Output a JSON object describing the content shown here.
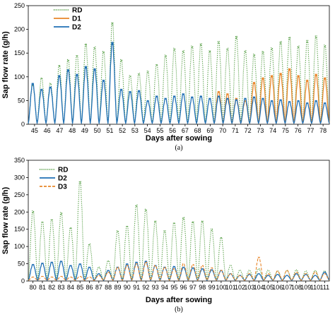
{
  "chart_data": [
    {
      "type": "line",
      "panel_label": "(a)",
      "xlabel": "Days after sowing",
      "ylabel": "Sap flow rate (g/h)",
      "xlim": [
        45,
        79
      ],
      "ylim": [
        0,
        250
      ],
      "yticks": [
        0,
        50,
        100,
        150,
        200,
        250
      ],
      "xticks": [
        45,
        46,
        47,
        48,
        49,
        50,
        51,
        52,
        53,
        54,
        55,
        56,
        67,
        68,
        69,
        70,
        71,
        72,
        73,
        74,
        75,
        76,
        77,
        78
      ],
      "grid": false,
      "legend_position": "top-left",
      "series": [
        {
          "name": "RD",
          "color": "#4e9a3c",
          "dash": "dotted",
          "daily_peaks": [
            [
              45.5,
              85
            ],
            [
              46.5,
              100
            ],
            [
              47.5,
              88
            ],
            [
              48.5,
              128
            ],
            [
              49.5,
              140
            ],
            [
              50.5,
              150
            ],
            [
              51.5,
              175
            ],
            [
              52.5,
              168
            ],
            [
              53.5,
              158
            ],
            [
              54.5,
              222
            ],
            [
              55.5,
              140
            ],
            [
              56.5,
              105
            ],
            [
              57.5,
              110
            ],
            [
              58.5,
              115
            ],
            [
              59.5,
              130
            ],
            [
              60.5,
              150
            ],
            [
              61.5,
              165
            ],
            [
              62.5,
              160
            ],
            [
              63.5,
              170
            ],
            [
              64.5,
              175
            ],
            [
              65.5,
              160
            ],
            [
              66.5,
              180
            ],
            [
              67.5,
              165
            ],
            [
              68.5,
              192
            ],
            [
              69.5,
              160
            ],
            [
              70.5,
              152
            ],
            [
              71.5,
              158
            ],
            [
              72.5,
              166
            ],
            [
              73.5,
              180
            ],
            [
              74.5,
              190
            ],
            [
              75.5,
              170
            ],
            [
              76.5,
              182
            ],
            [
              77.5,
              192
            ],
            [
              78.5,
              172
            ]
          ]
        },
        {
          "name": "D1",
          "color": "#e8862a",
          "dash": "solid",
          "daily_peaks": [
            [
              66.5,
              70
            ],
            [
              67.5,
              65
            ],
            [
              68.5,
              55
            ],
            [
              69.5,
              50
            ],
            [
              70.5,
              90
            ],
            [
              71.5,
              100
            ],
            [
              72.5,
              105
            ],
            [
              73.5,
              110
            ],
            [
              74.5,
              120
            ],
            [
              75.5,
              105
            ],
            [
              76.5,
              95
            ],
            [
              77.5,
              108
            ],
            [
              78.5,
              100
            ]
          ]
        },
        {
          "name": "D2",
          "color": "#1f6fb4",
          "dash": "solid",
          "daily_peaks": [
            [
              45.5,
              88
            ],
            [
              46.5,
              75
            ],
            [
              47.5,
              80
            ],
            [
              48.5,
              105
            ],
            [
              49.5,
              118
            ],
            [
              50.5,
              108
            ],
            [
              51.5,
              125
            ],
            [
              52.5,
              120
            ],
            [
              53.5,
              95
            ],
            [
              54.5,
              178
            ],
            [
              55.5,
              75
            ],
            [
              56.5,
              70
            ],
            [
              57.5,
              72
            ],
            [
              58.5,
              50
            ],
            [
              59.5,
              60
            ],
            [
              60.5,
              55
            ],
            [
              61.5,
              60
            ],
            [
              62.5,
              65
            ],
            [
              63.5,
              58
            ],
            [
              64.5,
              60
            ],
            [
              65.5,
              55
            ],
            [
              66.5,
              60
            ],
            [
              67.5,
              55
            ],
            [
              68.5,
              52
            ],
            [
              69.5,
              55
            ],
            [
              70.5,
              58
            ],
            [
              71.5,
              55
            ],
            [
              72.5,
              50
            ],
            [
              73.5,
              52
            ],
            [
              74.5,
              48
            ],
            [
              75.5,
              50
            ],
            [
              76.5,
              45
            ],
            [
              77.5,
              50
            ],
            [
              78.5,
              45
            ]
          ]
        }
      ]
    },
    {
      "type": "line",
      "panel_label": "(b)",
      "xlabel": "Days after sowing",
      "ylabel": "Sap flow rate (g/h)",
      "xlim": [
        80,
        112
      ],
      "ylim": [
        0,
        350
      ],
      "yticks": [
        0,
        50,
        100,
        150,
        200,
        250,
        300,
        350
      ],
      "xticks": [
        80,
        81,
        82,
        83,
        84,
        85,
        86,
        87,
        88,
        89,
        90,
        91,
        92,
        93,
        94,
        95,
        96,
        97,
        98,
        99,
        100,
        101,
        102,
        103,
        104,
        105,
        106,
        107,
        108,
        109,
        110,
        111
      ],
      "grid": false,
      "legend_position": "top-left",
      "series": [
        {
          "name": "RD",
          "color": "#4e9a3c",
          "dash": "dotted",
          "daily_peaks": [
            [
              80.5,
              210
            ],
            [
              81.5,
              178
            ],
            [
              82.5,
              185
            ],
            [
              83.5,
              205
            ],
            [
              84.5,
              160
            ],
            [
              85.5,
              300
            ],
            [
              86.5,
              110
            ],
            [
              87.5,
              40
            ],
            [
              88.5,
              60
            ],
            [
              89.5,
              150
            ],
            [
              90.5,
              165
            ],
            [
              91.5,
              228
            ],
            [
              92.5,
              215
            ],
            [
              93.5,
              180
            ],
            [
              94.5,
              150
            ],
            [
              95.5,
              175
            ],
            [
              96.5,
              190
            ],
            [
              97.5,
              178
            ],
            [
              98.5,
              180
            ],
            [
              99.5,
              155
            ],
            [
              100.5,
              130
            ],
            [
              101.5,
              45
            ],
            [
              102.5,
              30
            ],
            [
              103.5,
              30
            ],
            [
              104.5,
              35
            ],
            [
              105.5,
              30
            ],
            [
              106.5,
              28
            ],
            [
              107.5,
              30
            ],
            [
              108.5,
              32
            ],
            [
              109.5,
              28
            ],
            [
              110.5,
              30
            ],
            [
              111.5,
              28
            ]
          ]
        },
        {
          "name": "D2",
          "color": "#1f6fb4",
          "dash": "solid",
          "daily_peaks": [
            [
              80.5,
              48
            ],
            [
              81.5,
              52
            ],
            [
              82.5,
              55
            ],
            [
              83.5,
              58
            ],
            [
              84.5,
              45
            ],
            [
              85.5,
              50
            ],
            [
              86.5,
              40
            ],
            [
              87.5,
              20
            ],
            [
              88.5,
              30
            ],
            [
              89.5,
              40
            ],
            [
              90.5,
              50
            ],
            [
              91.5,
              55
            ],
            [
              92.5,
              58
            ],
            [
              93.5,
              45
            ],
            [
              94.5,
              40
            ],
            [
              95.5,
              42
            ],
            [
              96.5,
              40
            ],
            [
              97.5,
              38
            ],
            [
              98.5,
              35
            ],
            [
              99.5,
              32
            ],
            [
              100.5,
              30
            ],
            [
              101.5,
              20
            ],
            [
              102.5,
              15
            ],
            [
              103.5,
              18
            ],
            [
              104.5,
              20
            ],
            [
              105.5,
              15
            ],
            [
              106.5,
              18
            ],
            [
              107.5,
              15
            ],
            [
              108.5,
              20
            ],
            [
              109.5,
              18
            ],
            [
              110.5,
              15
            ],
            [
              111.5,
              25
            ]
          ]
        },
        {
          "name": "D3",
          "color": "#e8862a",
          "dash": "dashed",
          "daily_peaks": [
            [
              80.5,
              10
            ],
            [
              81.5,
              12
            ],
            [
              82.5,
              10
            ],
            [
              83.5,
              12
            ],
            [
              84.5,
              10
            ],
            [
              85.5,
              12
            ],
            [
              86.5,
              10
            ],
            [
              87.5,
              15
            ],
            [
              88.5,
              25
            ],
            [
              89.5,
              40
            ],
            [
              90.5,
              45
            ],
            [
              91.5,
              50
            ],
            [
              92.5,
              55
            ],
            [
              93.5,
              45
            ],
            [
              94.5,
              40
            ],
            [
              95.5,
              35
            ],
            [
              96.5,
              50
            ],
            [
              97.5,
              48
            ],
            [
              98.5,
              45
            ],
            [
              99.5,
              38
            ],
            [
              100.5,
              30
            ],
            [
              101.5,
              20
            ],
            [
              102.5,
              15
            ],
            [
              103.5,
              20
            ],
            [
              104.5,
              70
            ],
            [
              105.5,
              20
            ],
            [
              106.5,
              28
            ],
            [
              107.5,
              30
            ],
            [
              108.5,
              25
            ],
            [
              109.5,
              20
            ],
            [
              110.5,
              25
            ],
            [
              111.5,
              20
            ]
          ]
        }
      ]
    }
  ]
}
